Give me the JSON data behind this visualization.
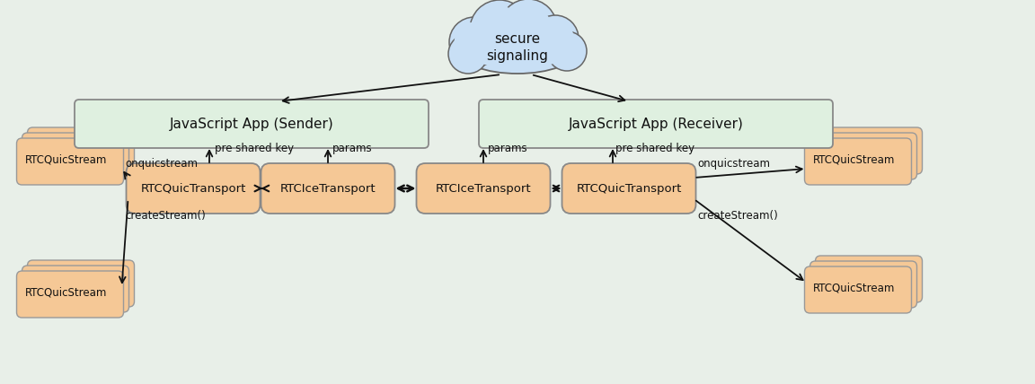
{
  "bg_color": "#e8efe8",
  "cloud_color": "#c8dff5",
  "cloud_edge": "#666666",
  "js_box_color": "#dff0e0",
  "js_box_edge": "#888888",
  "rtc_box_color": "#f5c896",
  "rtc_box_edge": "#888888",
  "stack_color": "#f5c896",
  "stack_edge": "#999999",
  "arrow_color": "#111111",
  "text_color": "#111111",
  "label_color": "#111111",
  "cloud_text": "secure\nsignaling",
  "sender_text": "JavaScript App (Sender)",
  "receiver_text": "JavaScript App (Receiver)",
  "quic_transport_l": "RTCQuicTransport",
  "ice_transport_l": "RTCIceTransport",
  "ice_transport_r": "RTCIceTransport",
  "quic_transport_r": "RTCQuicTransport",
  "stream_label": "RTCQuicStream",
  "label_pre_shared_key_l": "pre shared key",
  "label_params_l": "params",
  "label_params_r": "params",
  "label_pre_shared_key_r": "pre shared key",
  "label_onquicstream_l": "onquicstream",
  "label_createstream_l": "createStream()",
  "label_onquicstream_r": "onquicstream",
  "label_createstream_r": "createStream()"
}
